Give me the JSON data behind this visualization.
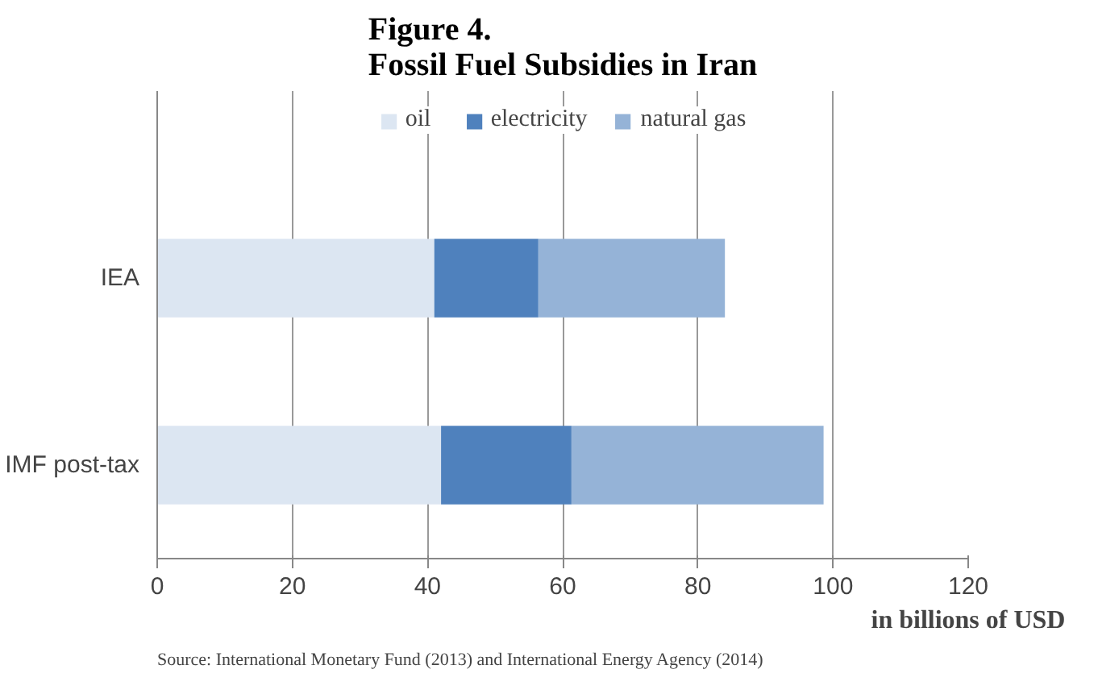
{
  "chart_data": {
    "type": "bar",
    "orientation": "horizontal",
    "stacked": true,
    "title": "Figure 4.\nFossil Fuel Subsidies in Iran",
    "categories": [
      "IEA",
      "IMF post-tax"
    ],
    "series": [
      {
        "name": "oil",
        "color": "#dce6f2",
        "values": [
          41.0,
          42.0
        ]
      },
      {
        "name": "electricity",
        "color": "#4f81bd",
        "values": [
          15.4,
          19.3
        ]
      },
      {
        "name": "natural gas",
        "color": "#95b3d7",
        "values": [
          27.6,
          37.3
        ]
      }
    ],
    "xlim": [
      0,
      120
    ],
    "xticks": [
      0,
      20,
      40,
      60,
      80,
      100,
      120
    ],
    "xlabel": "in billions of USD",
    "grid": "x",
    "legend": "top",
    "annotations": [
      "Source: International Monetary Fund (2013) and International Energy Agency (2014)"
    ]
  }
}
